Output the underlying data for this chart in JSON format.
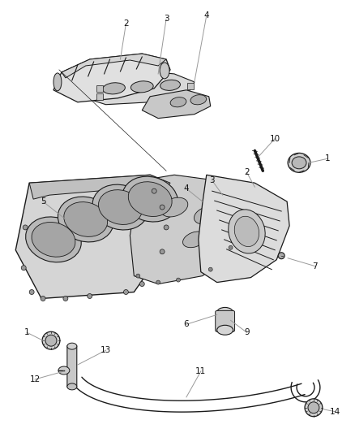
{
  "bg_color": "#ffffff",
  "dark_line": "#1a1a1a",
  "med_line": "#555555",
  "light_fill": "#e8e8e8",
  "mid_fill": "#d0d0d0",
  "dark_fill": "#b0b0b0",
  "label_color": "#222222",
  "leader_color": "#888888",
  "figsize": [
    4.38,
    5.33
  ],
  "dpi": 100,
  "font_size": 7.5
}
